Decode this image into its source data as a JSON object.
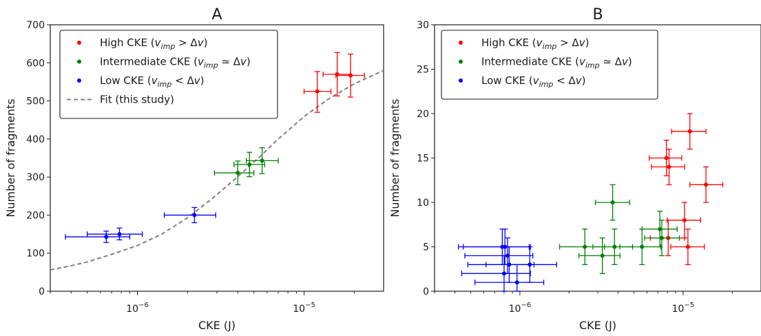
{
  "chart_data": [
    {
      "type": "scatter",
      "title": "A",
      "xlabel": "CKE (J)",
      "ylabel": "Number of fragments",
      "xscale": "log",
      "xlim": [
        3e-07,
        3e-05
      ],
      "ylim": [
        0,
        700
      ],
      "yticks": [
        0,
        100,
        200,
        300,
        400,
        500,
        600,
        700
      ],
      "xticks": [
        {
          "value": 1e-06,
          "base": "10",
          "exp": "−6"
        },
        {
          "value": 1e-05,
          "base": "10",
          "exp": "−5"
        }
      ],
      "grid": false,
      "legend_position": "top-left",
      "legend": [
        {
          "kind": "dot",
          "color": "#ff0000",
          "parts": [
            {
              "t": "High CKE ("
            },
            {
              "t": "v",
              "i": true
            },
            {
              "t": "imp",
              "i": true,
              "sub": true
            },
            {
              "t": " > Δ"
            },
            {
              "t": "v",
              "i": true
            },
            {
              "t": ")"
            }
          ]
        },
        {
          "kind": "dot",
          "color": "#008000",
          "parts": [
            {
              "t": "Intermediate CKE ("
            },
            {
              "t": "v",
              "i": true
            },
            {
              "t": "imp",
              "i": true,
              "sub": true
            },
            {
              "t": " ≃ Δ"
            },
            {
              "t": "v",
              "i": true
            },
            {
              "t": ")"
            }
          ]
        },
        {
          "kind": "dot",
          "color": "#0000ff",
          "parts": [
            {
              "t": "Low CKE ("
            },
            {
              "t": "v",
              "i": true
            },
            {
              "t": "imp",
              "i": true,
              "sub": true
            },
            {
              "t": " < Δ"
            },
            {
              "t": "v",
              "i": true
            },
            {
              "t": ")"
            }
          ]
        },
        {
          "kind": "dash",
          "color": "#808080",
          "parts": [
            {
              "t": "Fit (this study)"
            }
          ]
        }
      ],
      "series": [
        {
          "color": "#ff0000",
          "points": [
            {
              "x": 1.2e-05,
              "y": 525,
              "xlo": 1e-05,
              "xhi": 1.45e-05,
              "ylo": 470,
              "yhi": 577
            },
            {
              "x": 1.58e-05,
              "y": 570,
              "xlo": 1.3e-05,
              "xhi": 1.9e-05,
              "ylo": 513,
              "yhi": 627
            },
            {
              "x": 1.9e-05,
              "y": 567,
              "xlo": 1.55e-05,
              "xhi": 2.3e-05,
              "ylo": 510,
              "yhi": 623
            }
          ]
        },
        {
          "color": "#008000",
          "points": [
            {
              "x": 4e-06,
              "y": 311,
              "xlo": 2.9e-06,
              "xhi": 5e-06,
              "ylo": 280,
              "yhi": 342
            },
            {
              "x": 4.7e-06,
              "y": 333,
              "xlo": 3.8e-06,
              "xhi": 5.8e-06,
              "ylo": 301,
              "yhi": 365
            },
            {
              "x": 5.6e-06,
              "y": 343,
              "xlo": 4.5e-06,
              "xhi": 7e-06,
              "ylo": 309,
              "yhi": 377
            }
          ]
        },
        {
          "color": "#0000ff",
          "points": [
            {
              "x": 6.5e-07,
              "y": 143,
              "xlo": 3.7e-07,
              "xhi": 9e-07,
              "ylo": 128,
              "yhi": 158
            },
            {
              "x": 7.8e-07,
              "y": 150,
              "xlo": 5e-07,
              "xhi": 1.07e-06,
              "ylo": 135,
              "yhi": 166
            },
            {
              "x": 2.2e-06,
              "y": 200,
              "xlo": 1.45e-06,
              "xhi": 2.95e-06,
              "ylo": 180,
              "yhi": 220
            }
          ]
        }
      ],
      "fit": {
        "color": "#808080",
        "points": [
          [
            3e-07,
            56
          ],
          [
            4e-07,
            67
          ],
          [
            5e-07,
            77
          ],
          [
            7e-07,
            97
          ],
          [
            1e-06,
            120
          ],
          [
            1.4e-06,
            150
          ],
          [
            2e-06,
            193
          ],
          [
            2.8e-06,
            243
          ],
          [
            4e-06,
            301
          ],
          [
            5.5e-06,
            356
          ],
          [
            7e-06,
            400
          ],
          [
            1e-05,
            459
          ],
          [
            1.4e-05,
            505
          ],
          [
            2e-05,
            545
          ],
          [
            3e-05,
            580
          ]
        ]
      }
    },
    {
      "type": "scatter",
      "title": "B",
      "xlabel": "CKE (J)",
      "ylabel": "Number of fragments",
      "xscale": "log",
      "xlim": [
        3e-07,
        3e-05
      ],
      "ylim": [
        0,
        30
      ],
      "yticks": [
        0,
        5,
        10,
        15,
        20,
        25,
        30
      ],
      "xticks": [
        {
          "value": 1e-06,
          "base": "10",
          "exp": "−6"
        },
        {
          "value": 1e-05,
          "base": "10",
          "exp": "−5"
        }
      ],
      "grid": false,
      "legend_position": "top-left",
      "legend": [
        {
          "kind": "dot",
          "color": "#ff0000",
          "parts": [
            {
              "t": "High CKE ("
            },
            {
              "t": "v",
              "i": true
            },
            {
              "t": "imp",
              "i": true,
              "sub": true
            },
            {
              "t": " > Δ"
            },
            {
              "t": "v",
              "i": true
            },
            {
              "t": ")"
            }
          ]
        },
        {
          "kind": "dot",
          "color": "#008000",
          "parts": [
            {
              "t": "Intermediate CKE ("
            },
            {
              "t": "v",
              "i": true
            },
            {
              "t": "imp",
              "i": true,
              "sub": true
            },
            {
              "t": " ≃ Δ"
            },
            {
              "t": "v",
              "i": true
            },
            {
              "t": ")"
            }
          ]
        },
        {
          "kind": "dot",
          "color": "#0000ff",
          "parts": [
            {
              "t": "Low CKE ("
            },
            {
              "t": "v",
              "i": true
            },
            {
              "t": "imp",
              "i": true,
              "sub": true
            },
            {
              "t": " < Δ"
            },
            {
              "t": "v",
              "i": true
            },
            {
              "t": ")"
            }
          ]
        }
      ],
      "series": [
        {
          "color": "#ff0000",
          "points": [
            {
              "x": 1.1e-05,
              "y": 18,
              "xlo": 8.5e-06,
              "xhi": 1.38e-05,
              "ylo": 16,
              "yhi": 20
            },
            {
              "x": 7.9e-06,
              "y": 15,
              "xlo": 6.2e-06,
              "xhi": 9.8e-06,
              "ylo": 13,
              "yhi": 17
            },
            {
              "x": 8.2e-06,
              "y": 14,
              "xlo": 6.4e-06,
              "xhi": 1.02e-05,
              "ylo": 12,
              "yhi": 16
            },
            {
              "x": 1.38e-05,
              "y": 12,
              "xlo": 1.1e-05,
              "xhi": 1.75e-05,
              "ylo": 10,
              "yhi": 14
            },
            {
              "x": 1.02e-05,
              "y": 8,
              "xlo": 8e-06,
              "xhi": 1.28e-05,
              "ylo": 6,
              "yhi": 10
            },
            {
              "x": 8.1e-06,
              "y": 6,
              "xlo": 6.3e-06,
              "xhi": 1.02e-05,
              "ylo": 4,
              "yhi": 8
            },
            {
              "x": 1.07e-05,
              "y": 5,
              "xlo": 8.4e-06,
              "xhi": 1.35e-05,
              "ylo": 3,
              "yhi": 7
            }
          ]
        },
        {
          "color": "#008000",
          "points": [
            {
              "x": 3.7e-06,
              "y": 10,
              "xlo": 2.9e-06,
              "xhi": 4.7e-06,
              "ylo": 8,
              "yhi": 12
            },
            {
              "x": 7.2e-06,
              "y": 7,
              "xlo": 5.6e-06,
              "xhi": 9.2e-06,
              "ylo": 5,
              "yhi": 9
            },
            {
              "x": 7.4e-06,
              "y": 6,
              "xlo": 5.8e-06,
              "xhi": 9.5e-06,
              "ylo": 4,
              "yhi": 8
            },
            {
              "x": 2.5e-06,
              "y": 5,
              "xlo": 1.75e-06,
              "xhi": 3.3e-06,
              "ylo": 3,
              "yhi": 7
            },
            {
              "x": 3.8e-06,
              "y": 5,
              "xlo": 2.8e-06,
              "xhi": 4.9e-06,
              "ylo": 3,
              "yhi": 7
            },
            {
              "x": 5.6e-06,
              "y": 5,
              "xlo": 4.1e-06,
              "xhi": 7.3e-06,
              "ylo": 3,
              "yhi": 7
            },
            {
              "x": 3.2e-06,
              "y": 4,
              "xlo": 2.3e-06,
              "xhi": 4.1e-06,
              "ylo": 2,
              "yhi": 6
            }
          ]
        },
        {
          "color": "#0000ff",
          "points": [
            {
              "x": 7.8e-07,
              "y": 5,
              "xlo": 4.2e-07,
              "xhi": 1.14e-06,
              "ylo": 3,
              "yhi": 7
            },
            {
              "x": 8.1e-07,
              "y": 5,
              "xlo": 4.5e-07,
              "xhi": 1.16e-06,
              "ylo": 3,
              "yhi": 7
            },
            {
              "x": 8.4e-07,
              "y": 4,
              "xlo": 4.6e-07,
              "xhi": 1.2e-06,
              "ylo": 2,
              "yhi": 6
            },
            {
              "x": 1.15e-06,
              "y": 3,
              "xlo": 6.2e-07,
              "xhi": 1.68e-06,
              "ylo": 1,
              "yhi": 5
            },
            {
              "x": 8.6e-07,
              "y": 3,
              "xlo": 4.8e-07,
              "xhi": 1.22e-06,
              "ylo": 1,
              "yhi": 5
            },
            {
              "x": 8e-07,
              "y": 2,
              "xlo": 4.4e-07,
              "xhi": 1.16e-06,
              "ylo": 0,
              "yhi": 4
            },
            {
              "x": 9.6e-07,
              "y": 1,
              "xlo": 5.3e-07,
              "xhi": 1.4e-06,
              "ylo": 0,
              "yhi": 3
            }
          ]
        }
      ]
    }
  ]
}
